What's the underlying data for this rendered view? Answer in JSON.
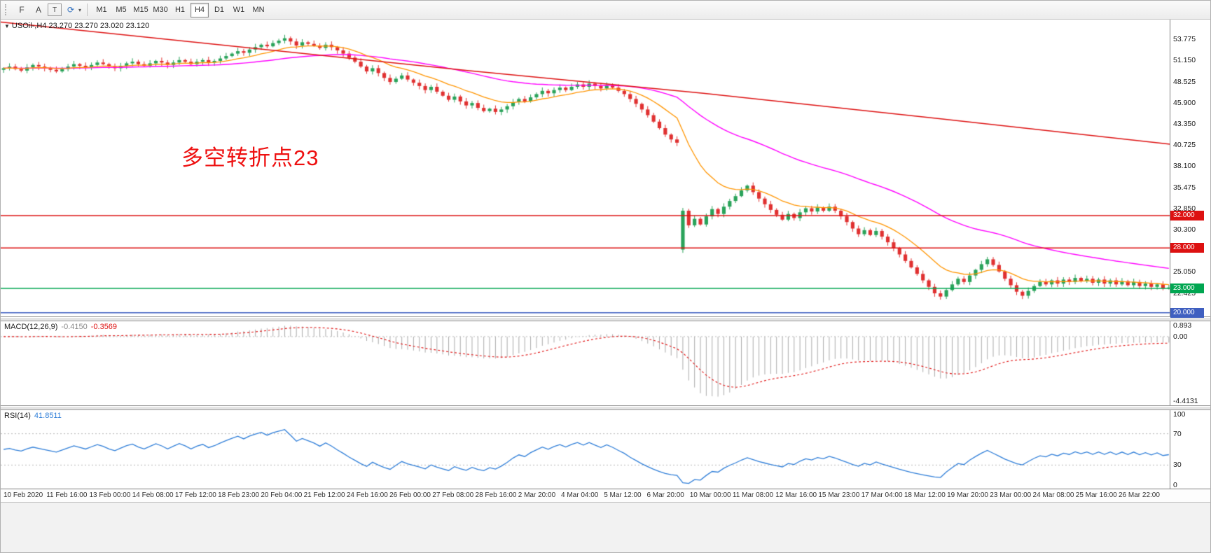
{
  "toolbar": {
    "tools": [
      {
        "name": "fibonacci-tool",
        "label": "F"
      },
      {
        "name": "arrow-tool",
        "label": "A"
      },
      {
        "name": "text-tool",
        "label": "T"
      },
      {
        "name": "refresh-cycle-tool",
        "label": "⟳"
      }
    ],
    "caret": "▾",
    "timeframes": [
      "M1",
      "M5",
      "M15",
      "M30",
      "H1",
      "H4",
      "D1",
      "W1",
      "MN"
    ],
    "active_timeframe": "H4"
  },
  "main_chart": {
    "collapse_icon": "▼",
    "symbol_title": "USOil-,H4",
    "ohlc": "23.270 23.270 23.020 23.120",
    "annotation": "多空转折点23",
    "y_ticks": [
      "53.775",
      "51.150",
      "48.525",
      "45.900",
      "43.350",
      "40.725",
      "38.100",
      "35.475",
      "32.850",
      "30.300",
      "27.675",
      "25.050",
      "22.425"
    ],
    "levels": [
      {
        "label": "32.000",
        "value": 32.0,
        "color": "#dd1111"
      },
      {
        "label": "28.000",
        "value": 28.0,
        "color": "#dd1111"
      },
      {
        "label": "23.000",
        "value": 23.0,
        "color": "#00a651"
      },
      {
        "label": "20.000",
        "value": 20.0,
        "color": "#3f5fc0"
      }
    ],
    "price_max": 56.2,
    "price_min": 19.55
  },
  "macd_panel": {
    "label": "MACD(12,26,9)",
    "value_main": "-0.4150",
    "value_signal": "-0.3569",
    "y_ticks": [
      "0.893",
      "0.00",
      "-4.4131"
    ],
    "range_max": 1.05,
    "range_min": -4.7
  },
  "rsi_panel": {
    "label": "RSI(14)",
    "value": "41.8511",
    "y_ticks": [
      "100",
      "70",
      "30",
      "0"
    ],
    "level_high": 70,
    "level_low": 30
  },
  "time_axis": {
    "labels": [
      "10 Feb 2020",
      "11 Feb 16:00",
      "13 Feb 00:00",
      "14 Feb 08:00",
      "17 Feb 12:00",
      "18 Feb 23:00",
      "20 Feb 04:00",
      "21 Feb 12:00",
      "24 Feb 16:00",
      "26 Feb 00:00",
      "27 Feb 08:00",
      "28 Feb 16:00",
      "2 Mar 20:00",
      "4 Mar 04:00",
      "5 Mar 12:00",
      "6 Mar 20:00",
      "10 Mar 00:00",
      "11 Mar 08:00",
      "12 Mar 16:00",
      "15 Mar 23:00",
      "17 Mar 04:00",
      "18 Mar 12:00",
      "19 Mar 20:00",
      "23 Mar 00:00",
      "24 Mar 08:00",
      "25 Mar 16:00",
      "26 Mar 22:00"
    ]
  },
  "chart_data": {
    "type": "candlestick",
    "symbol": "USOil-",
    "timeframe": "H4",
    "closes": [
      50.2,
      50.4,
      50.1,
      49.9,
      50.3,
      50.6,
      50.4,
      50.2,
      50.0,
      49.8,
      50.1,
      50.4,
      50.7,
      50.5,
      50.3,
      50.6,
      50.9,
      50.7,
      50.4,
      50.2,
      50.5,
      50.8,
      51.0,
      50.7,
      50.5,
      50.8,
      51.1,
      50.9,
      50.6,
      50.9,
      51.2,
      51.0,
      50.7,
      51.0,
      51.2,
      50.9,
      51.1,
      51.4,
      51.7,
      52.0,
      52.3,
      52.1,
      52.5,
      52.8,
      53.1,
      52.9,
      53.3,
      53.6,
      53.9,
      53.5,
      53.0,
      53.4,
      53.2,
      53.0,
      52.7,
      53.1,
      52.8,
      52.4,
      52.0,
      51.5,
      51.0,
      50.4,
      49.8,
      50.2,
      49.6,
      49.0,
      48.5,
      48.9,
      49.3,
      48.8,
      48.4,
      48.0,
      47.5,
      47.9,
      47.3,
      46.8,
      46.3,
      46.7,
      46.1,
      45.6,
      45.9,
      45.3,
      44.9,
      45.2,
      44.8,
      45.1,
      45.5,
      46.0,
      46.4,
      46.1,
      46.6,
      47.0,
      47.4,
      47.1,
      47.5,
      47.8,
      47.5,
      47.9,
      48.2,
      47.9,
      48.3,
      48.0,
      47.7,
      48.1,
      47.8,
      47.4,
      47.0,
      46.4,
      45.8,
      45.1,
      44.4,
      43.6,
      42.8,
      42.0,
      41.4,
      41.0,
      32.6,
      30.8,
      31.6,
      30.9,
      31.9,
      32.8,
      32.2,
      33.1,
      33.8,
      34.4,
      35.1,
      35.7,
      34.9,
      34.1,
      33.4,
      32.7,
      32.1,
      31.5,
      32.2,
      31.7,
      32.4,
      32.9,
      32.5,
      33.0,
      32.6,
      33.1,
      32.6,
      31.9,
      31.2,
      30.4,
      29.7,
      30.2,
      29.6,
      30.1,
      29.4,
      28.7,
      28.0,
      27.2,
      26.4,
      25.6,
      24.8,
      24.0,
      23.2,
      22.4,
      22.0,
      22.8,
      23.5,
      24.2,
      23.8,
      24.6,
      25.3,
      26.0,
      26.6,
      25.9,
      25.1,
      24.2,
      23.4,
      22.6,
      22.1,
      22.7,
      23.3,
      23.8,
      23.5,
      24.0,
      23.6,
      24.1,
      23.8,
      24.3,
      23.9,
      24.2,
      23.7,
      24.1,
      23.6,
      24.0,
      23.5,
      23.9,
      23.4,
      23.8,
      23.3,
      23.6,
      23.2,
      23.5,
      23.0,
      23.12
    ],
    "open_overrides": {
      "116": 27.8
    },
    "ma_fast_period": 13,
    "ma_mid_period": 50,
    "ma_slow_anchors": [
      [
        0,
        55.9
      ],
      [
        0.2,
        52.9
      ],
      [
        0.4,
        49.9
      ],
      [
        0.6,
        47.1
      ],
      [
        0.8,
        44.0
      ],
      [
        1,
        40.8
      ]
    ],
    "colors": {
      "up": "#2aa35a",
      "down": "#e03131",
      "ma_fast": "#ff9500",
      "ma_mid": "#ff00ff",
      "ma_slow": "#dd1111",
      "macd_hist": "#aaaaaa",
      "macd_signal": "#e01010",
      "rsi": "#2f7ed8",
      "level_grid": "#aaaaaa"
    }
  }
}
